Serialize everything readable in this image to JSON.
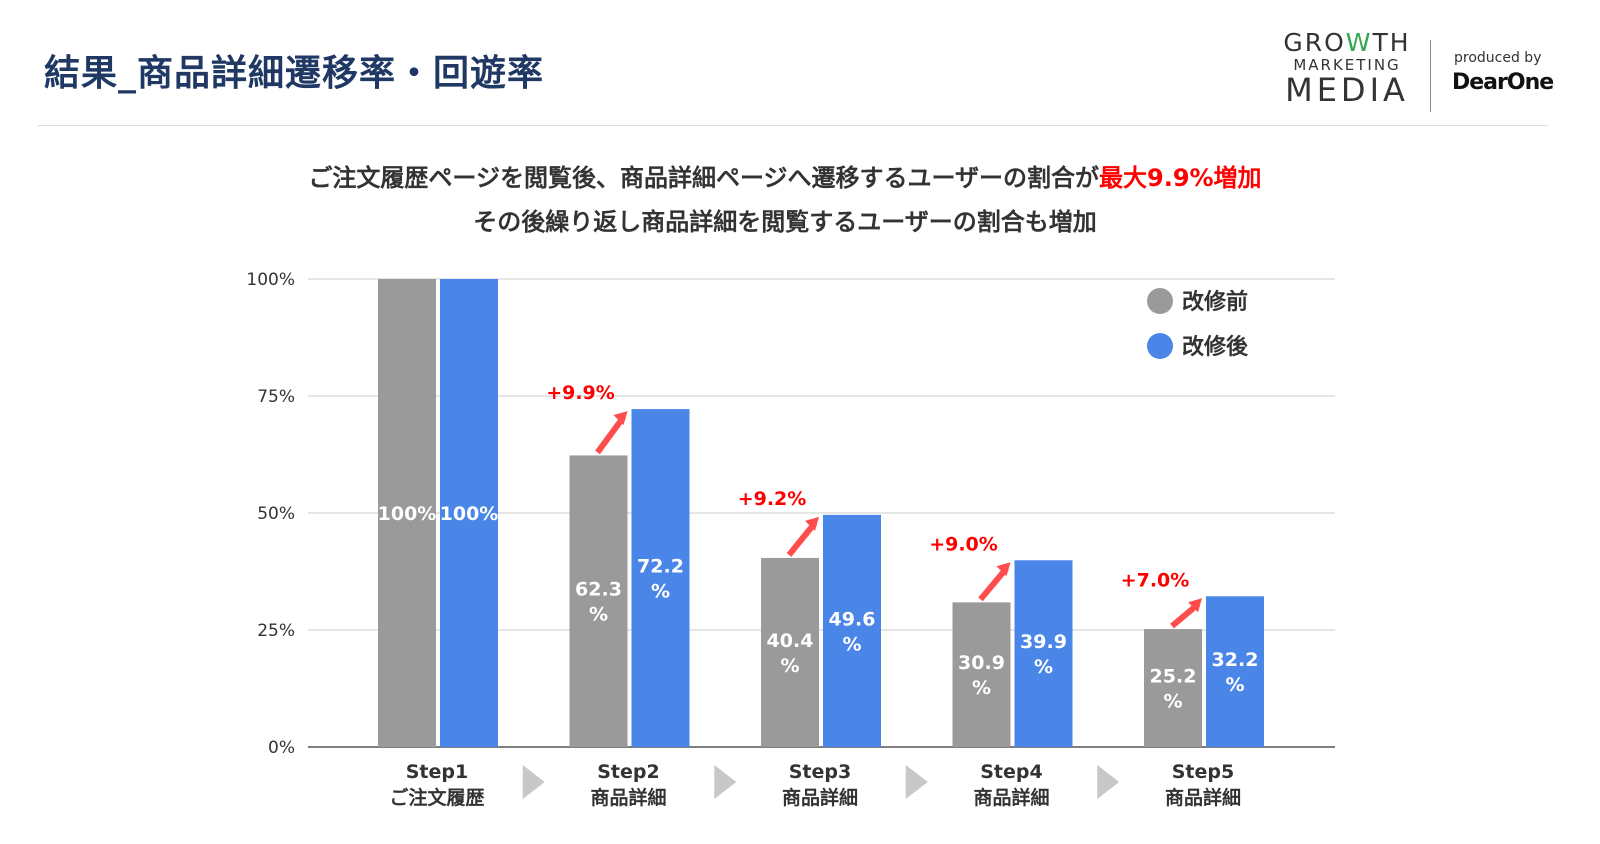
{
  "header": {
    "title": "結果_商品詳細遷移率・回遊率"
  },
  "logo": {
    "line1a": "GRO",
    "line1w": "W",
    "line1b": "TH",
    "line2": "MARKETING",
    "line3": "MEDIA",
    "produced_by": "produced by",
    "brand": "DearOne"
  },
  "subtitle": {
    "line1_prefix": "ご注文履歴ページを閲覧後、商品詳細ページへ遷移するユーザーの割合が",
    "line1_highlight": "最大9.9%増加",
    "line2": "その後繰り返し商品詳細を閲覧するユーザーの割合も増加"
  },
  "colors": {
    "before": "#9a9a9a",
    "after": "#4a86e8",
    "highlight": "#ff0000",
    "arrow": "#ff4d4d"
  },
  "chart_data": {
    "type": "bar",
    "categories": [
      [
        "Step1",
        "ご注文履歴"
      ],
      [
        "Step2",
        "商品詳細"
      ],
      [
        "Step3",
        "商品詳細"
      ],
      [
        "Step4",
        "商品詳細"
      ],
      [
        "Step5",
        "商品詳細"
      ]
    ],
    "series": [
      {
        "name": "改修前",
        "values": [
          100,
          62.3,
          40.4,
          30.9,
          25.2
        ],
        "labels": [
          "100%",
          "62.3\n%",
          "40.4\n%",
          "30.9\n%",
          "25.2\n%"
        ]
      },
      {
        "name": "改修後",
        "values": [
          100,
          72.2,
          49.6,
          39.9,
          32.2
        ],
        "labels": [
          "100%",
          "72.2\n%",
          "49.6\n%",
          "39.9\n%",
          "32.2\n%"
        ]
      }
    ],
    "annotations": [
      null,
      "+9.9%",
      "+9.2%",
      "+9.0%",
      "+7.0%"
    ],
    "yticks": [
      "0%",
      "25%",
      "50%",
      "75%",
      "100%"
    ],
    "ylim": [
      0,
      100
    ],
    "grid": true,
    "legend": "top-right"
  }
}
